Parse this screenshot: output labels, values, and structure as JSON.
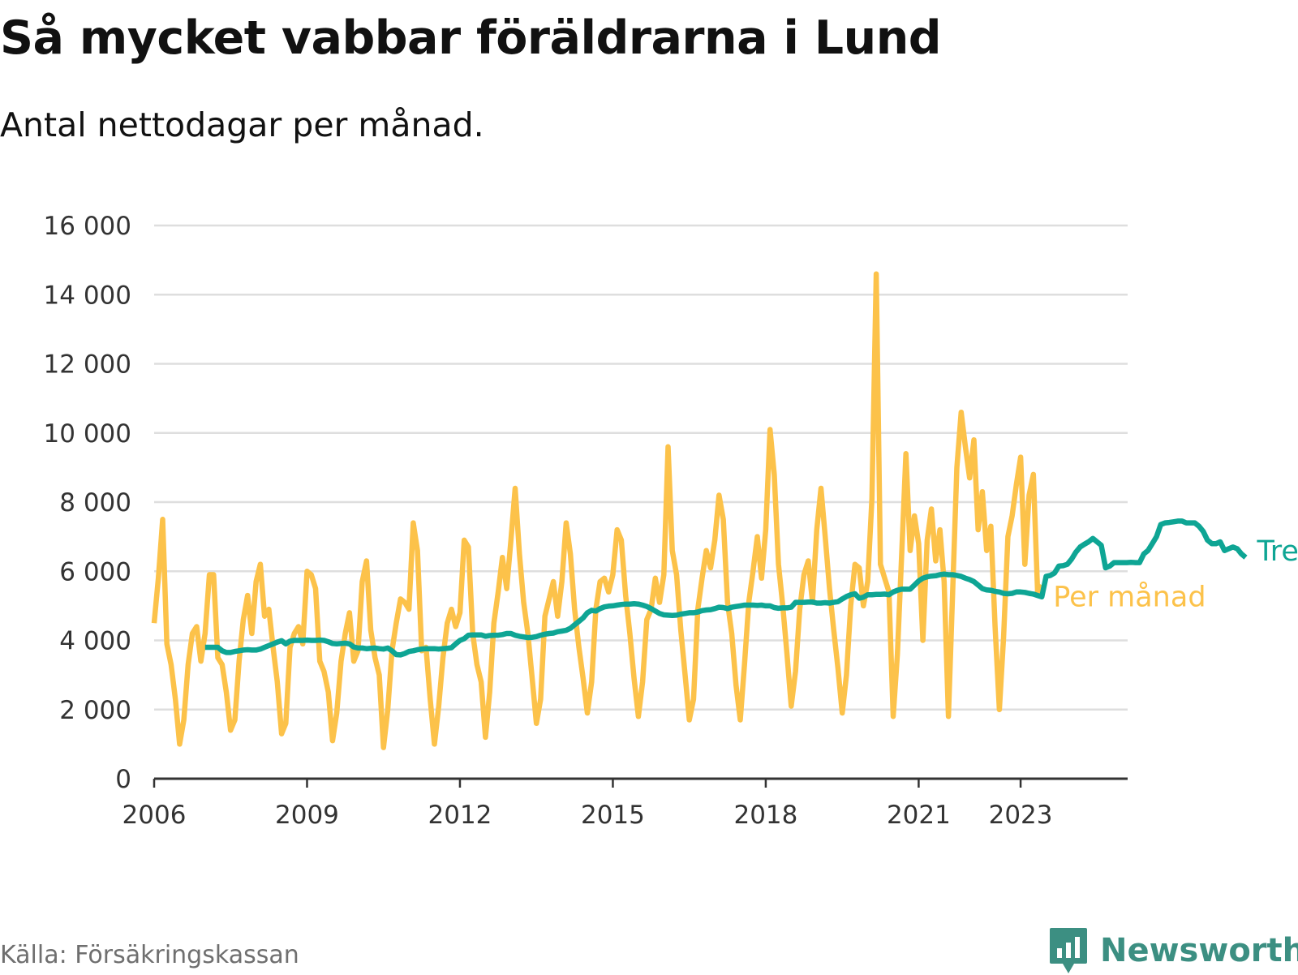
{
  "title": "Så mycket vabbar föräldrarna i Lund",
  "subtitle": "Antal nettodagar per månad.",
  "source": "Källa: Försäkringskassan",
  "brand": {
    "name": "Newsworthy",
    "icon": "newsworthy-logo-icon"
  },
  "chart_data": {
    "type": "line",
    "xlabel": "",
    "ylabel": "",
    "ylim": [
      0,
      16000
    ],
    "xlim": [
      2006,
      2025.1
    ],
    "yticks": [
      0,
      2000,
      4000,
      6000,
      8000,
      10000,
      12000,
      14000,
      16000
    ],
    "ytick_labels": [
      "0",
      "2 000",
      "4 000",
      "6 000",
      "8 000",
      "10 000",
      "12 000",
      "14 000",
      "16 000"
    ],
    "xticks": [
      2006,
      2009,
      2012,
      2015,
      2018,
      2021,
      2023
    ],
    "xtick_labels": [
      "2006",
      "2009",
      "2012",
      "2015",
      "2018",
      "2021",
      "2023"
    ],
    "grid": true,
    "legend": "line-end labels",
    "colors": {
      "monthly": "#fcc24a",
      "trend": "#0ea594",
      "grid": "#dedede",
      "axis": "#333333"
    },
    "series": [
      {
        "name": "Per månad",
        "start": "2006-01",
        "values": [
          4500,
          5800,
          7500,
          3900,
          3300,
          2300,
          1000,
          1700,
          3300,
          4200,
          4400,
          3400,
          4200,
          5900,
          5900,
          3500,
          3300,
          2500,
          1400,
          1700,
          3400,
          4600,
          5300,
          4200,
          5700,
          6200,
          4700,
          4900,
          3800,
          2800,
          1300,
          1600,
          3800,
          4200,
          4400,
          3900,
          6000,
          5900,
          5500,
          3400,
          3100,
          2500,
          1100,
          1900,
          3400,
          4200,
          4800,
          3400,
          3700,
          5700,
          6300,
          4300,
          3500,
          3000,
          900,
          2000,
          3700,
          4500,
          5200,
          5100,
          4900,
          7400,
          6600,
          3700,
          3800,
          2300,
          1000,
          2100,
          3500,
          4500,
          4900,
          4400,
          4800,
          6900,
          6700,
          4200,
          3300,
          2800,
          1200,
          2500,
          4500,
          5400,
          6400,
          5500,
          6900,
          8400,
          6500,
          5100,
          4200,
          2900,
          1600,
          2300,
          4700,
          5200,
          5700,
          4700,
          5700,
          7400,
          6500,
          4900,
          3800,
          2900,
          1900,
          2800,
          4900,
          5700,
          5800,
          5400,
          5900,
          7200,
          6900,
          5300,
          4200,
          2900,
          1800,
          2800,
          4600,
          4900,
          5800,
          5100,
          5900,
          9600,
          6600,
          5900,
          4300,
          3000,
          1700,
          2300,
          4900,
          5800,
          6600,
          6100,
          6900,
          8200,
          7500,
          5100,
          4200,
          2700,
          1700,
          3300,
          5100,
          6000,
          7000,
          5800,
          7200,
          10100,
          8800,
          6200,
          5000,
          3600,
          2100,
          3100,
          4900,
          5900,
          6300,
          5100,
          7200,
          8400,
          7000,
          5500,
          4300,
          3200,
          1900,
          3000,
          5000,
          6200,
          6100,
          5000,
          5700,
          8100,
          14600,
          6200,
          5800,
          5400,
          1800,
          3600,
          6500,
          9400,
          6600,
          7600,
          6800,
          4000,
          6900,
          7800,
          6300,
          7200,
          5700,
          1800,
          5400,
          9000,
          10600,
          9600,
          8700,
          9800,
          7200,
          8300,
          6600,
          7300,
          4400,
          2000,
          4100,
          7000,
          7600,
          8500,
          9300,
          6200,
          8200,
          8800,
          5400,
          5600
        ]
      },
      {
        "name": "Trend",
        "start": "2007-01",
        "values": [
          3800,
          3800,
          3800,
          3800,
          3700,
          3650,
          3650,
          3680,
          3700,
          3720,
          3730,
          3720,
          3720,
          3750,
          3800,
          3850,
          3900,
          3950,
          3990,
          3900,
          3980,
          4000,
          4000,
          4000,
          4010,
          4000,
          4000,
          4010,
          4000,
          3960,
          3910,
          3900,
          3910,
          3920,
          3900,
          3810,
          3780,
          3780,
          3760,
          3770,
          3780,
          3760,
          3750,
          3780,
          3700,
          3590,
          3580,
          3620,
          3680,
          3700,
          3730,
          3750,
          3760,
          3760,
          3760,
          3750,
          3760,
          3770,
          3790,
          3900,
          4000,
          4050,
          4150,
          4160,
          4160,
          4160,
          4120,
          4140,
          4150,
          4150,
          4170,
          4200,
          4200,
          4150,
          4120,
          4100,
          4080,
          4090,
          4110,
          4150,
          4180,
          4200,
          4210,
          4250,
          4270,
          4290,
          4350,
          4450,
          4550,
          4650,
          4800,
          4870,
          4850,
          4920,
          4970,
          4990,
          5000,
          5020,
          5040,
          5050,
          5050,
          5060,
          5050,
          5020,
          4980,
          4920,
          4850,
          4780,
          4740,
          4730,
          4720,
          4730,
          4760,
          4780,
          4800,
          4800,
          4820,
          4860,
          4880,
          4890,
          4920,
          4960,
          4950,
          4920,
          4960,
          4980,
          5000,
          5020,
          5020,
          5020,
          5010,
          5020,
          5000,
          5000,
          4950,
          4930,
          4940,
          4940,
          4960,
          5100,
          5100,
          5100,
          5110,
          5110,
          5080,
          5080,
          5090,
          5080,
          5100,
          5120,
          5200,
          5270,
          5320,
          5350,
          5220,
          5250,
          5320,
          5320,
          5330,
          5330,
          5340,
          5320,
          5400,
          5450,
          5480,
          5480,
          5480,
          5600,
          5720,
          5800,
          5840,
          5860,
          5870,
          5900,
          5920,
          5900,
          5900,
          5880,
          5850,
          5800,
          5760,
          5700,
          5600,
          5500,
          5460,
          5450,
          5420,
          5400,
          5360,
          5350,
          5360,
          5400,
          5400,
          5390,
          5360,
          5340,
          5300,
          5260,
          5850,
          5880,
          5950,
          6150,
          6160,
          6200,
          6350,
          6550,
          6700,
          6780,
          6850,
          6950,
          6850,
          6750,
          6100,
          6150,
          6250,
          6250,
          6250,
          6250,
          6260,
          6250,
          6250,
          6500,
          6600,
          6800,
          7000,
          7350,
          7400,
          7410,
          7430,
          7450,
          7450,
          7400,
          7400,
          7400,
          7300,
          7150,
          6900,
          6800,
          6800,
          6850,
          6600,
          6650,
          6700,
          6650,
          6500,
          6400
        ]
      }
    ]
  }
}
